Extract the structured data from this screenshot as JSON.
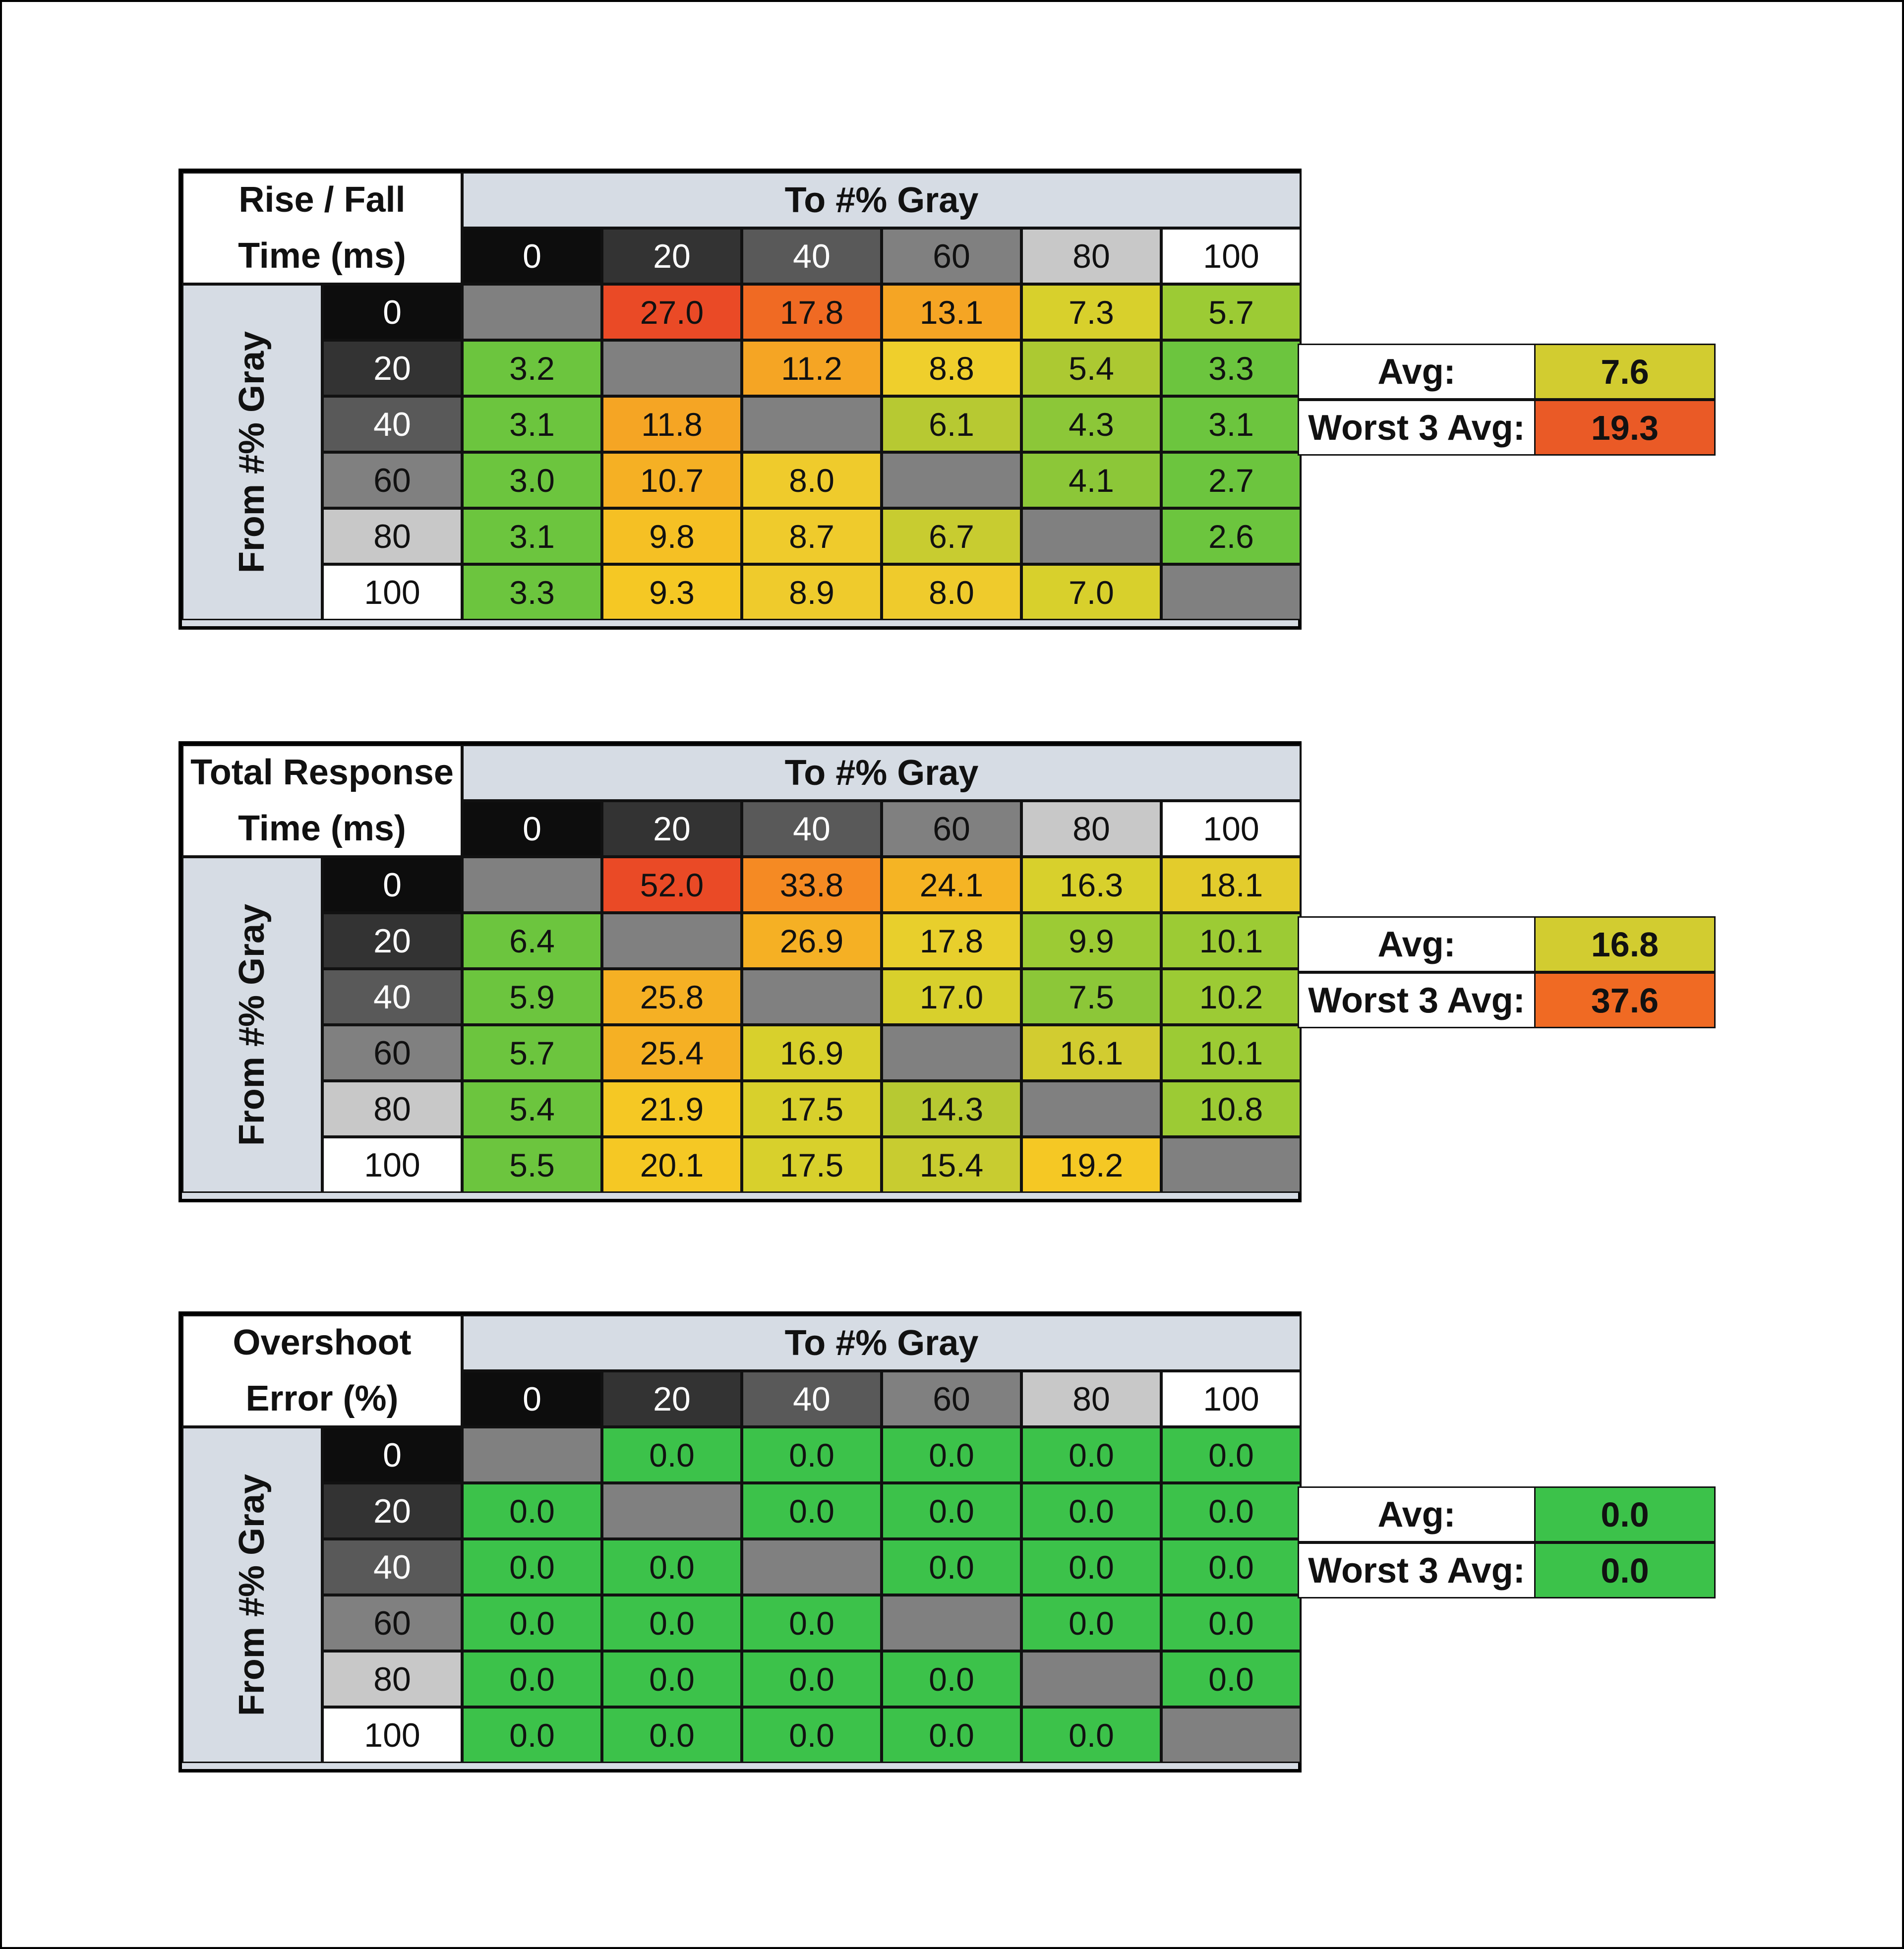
{
  "chart_data": [
    {
      "type": "table",
      "title_lines": [
        "Rise / Fall",
        "Time (ms)"
      ],
      "col_header": "To #% Gray",
      "row_header": "From #% Gray",
      "columns": [
        "0",
        "20",
        "40",
        "60",
        "80",
        "100"
      ],
      "rows": [
        "0",
        "20",
        "40",
        "60",
        "80",
        "100"
      ],
      "values": [
        [
          "",
          "27.0",
          "17.8",
          "13.1",
          "7.3",
          "5.7"
        ],
        [
          "3.2",
          "",
          "11.2",
          "8.8",
          "5.4",
          "3.3"
        ],
        [
          "3.1",
          "11.8",
          "",
          "6.1",
          "4.3",
          "3.1"
        ],
        [
          "3.0",
          "10.7",
          "8.0",
          "",
          "4.1",
          "2.7"
        ],
        [
          "3.1",
          "9.8",
          "8.7",
          "6.7",
          "",
          "2.6"
        ],
        [
          "3.3",
          "9.3",
          "8.9",
          "8.0",
          "7.0",
          ""
        ]
      ],
      "cell_colors": [
        [
          "#808080",
          "#ea4a26",
          "#f06a23",
          "#f5a524",
          "#d8d02c",
          "#9ccb34"
        ],
        [
          "#6cc53e",
          "#808080",
          "#f5a524",
          "#efcf2c",
          "#acc932",
          "#6cc53e"
        ],
        [
          "#6cc53e",
          "#f5a524",
          "#808080",
          "#b7c932",
          "#8cc738",
          "#6cc53e"
        ],
        [
          "#6cc53e",
          "#f5b024",
          "#efcb2c",
          "#808080",
          "#8cc738",
          "#6cc53e"
        ],
        [
          "#6cc53e",
          "#f5c024",
          "#efcb2c",
          "#c8cc30",
          "#808080",
          "#6cc53e"
        ],
        [
          "#6cc53e",
          "#f5c824",
          "#efcb2c",
          "#efcb2c",
          "#d8d02c",
          "#808080"
        ]
      ],
      "summary": [
        {
          "label": "Avg:",
          "value": "7.6",
          "color": "#d2cc30"
        },
        {
          "label": "Worst 3 Avg:",
          "value": "19.3",
          "color": "#ea5a26"
        }
      ]
    },
    {
      "type": "table",
      "title_lines": [
        "Total Response",
        "Time (ms)"
      ],
      "col_header": "To #% Gray",
      "row_header": "From #% Gray",
      "columns": [
        "0",
        "20",
        "40",
        "60",
        "80",
        "100"
      ],
      "rows": [
        "0",
        "20",
        "40",
        "60",
        "80",
        "100"
      ],
      "values": [
        [
          "",
          "52.0",
          "33.8",
          "24.1",
          "16.3",
          "18.1"
        ],
        [
          "6.4",
          "",
          "26.9",
          "17.8",
          "9.9",
          "10.1"
        ],
        [
          "5.9",
          "25.8",
          "",
          "17.0",
          "7.5",
          "10.2"
        ],
        [
          "5.7",
          "25.4",
          "16.9",
          "",
          "16.1",
          "10.1"
        ],
        [
          "5.4",
          "21.9",
          "17.5",
          "14.3",
          "",
          "10.8"
        ],
        [
          "5.5",
          "20.1",
          "17.5",
          "15.4",
          "19.2",
          ""
        ]
      ],
      "cell_colors": [
        [
          "#808080",
          "#ea4a26",
          "#f58a23",
          "#f5b424",
          "#d8d02c",
          "#e3cc2c"
        ],
        [
          "#6cc53e",
          "#808080",
          "#f5b024",
          "#e8cf2c",
          "#9ccb34",
          "#9ccb34"
        ],
        [
          "#6cc53e",
          "#f5b024",
          "#808080",
          "#d8d02c",
          "#8cc738",
          "#9ccb34"
        ],
        [
          "#6cc53e",
          "#f5b024",
          "#d8d02c",
          "#808080",
          "#d2cc30",
          "#9ccb34"
        ],
        [
          "#6cc53e",
          "#f5c824",
          "#d8d02c",
          "#b7c932",
          "#808080",
          "#9ccb34"
        ],
        [
          "#6cc53e",
          "#f5c824",
          "#d8d02c",
          "#c8cc30",
          "#f5c824",
          "#808080"
        ]
      ],
      "summary": [
        {
          "label": "Avg:",
          "value": "16.8",
          "color": "#d2cc30"
        },
        {
          "label": "Worst 3 Avg:",
          "value": "37.6",
          "color": "#f06a23"
        }
      ]
    },
    {
      "type": "table",
      "title_lines": [
        "Overshoot",
        "Error (%)"
      ],
      "col_header": "To #% Gray",
      "row_header": "From #% Gray",
      "columns": [
        "0",
        "20",
        "40",
        "60",
        "80",
        "100"
      ],
      "rows": [
        "0",
        "20",
        "40",
        "60",
        "80",
        "100"
      ],
      "values": [
        [
          "",
          "0.0",
          "0.0",
          "0.0",
          "0.0",
          "0.0"
        ],
        [
          "0.0",
          "",
          "0.0",
          "0.0",
          "0.0",
          "0.0"
        ],
        [
          "0.0",
          "0.0",
          "",
          "0.0",
          "0.0",
          "0.0"
        ],
        [
          "0.0",
          "0.0",
          "0.0",
          "",
          "0.0",
          "0.0"
        ],
        [
          "0.0",
          "0.0",
          "0.0",
          "0.0",
          "",
          "0.0"
        ],
        [
          "0.0",
          "0.0",
          "0.0",
          "0.0",
          "0.0",
          ""
        ]
      ],
      "cell_colors": [
        [
          "#808080",
          "#3cc24a",
          "#3cc24a",
          "#3cc24a",
          "#3cc24a",
          "#3cc24a"
        ],
        [
          "#3cc24a",
          "#808080",
          "#3cc24a",
          "#3cc24a",
          "#3cc24a",
          "#3cc24a"
        ],
        [
          "#3cc24a",
          "#3cc24a",
          "#808080",
          "#3cc24a",
          "#3cc24a",
          "#3cc24a"
        ],
        [
          "#3cc24a",
          "#3cc24a",
          "#3cc24a",
          "#808080",
          "#3cc24a",
          "#3cc24a"
        ],
        [
          "#3cc24a",
          "#3cc24a",
          "#3cc24a",
          "#3cc24a",
          "#808080",
          "#3cc24a"
        ],
        [
          "#3cc24a",
          "#3cc24a",
          "#3cc24a",
          "#3cc24a",
          "#3cc24a",
          "#808080"
        ]
      ],
      "summary": [
        {
          "label": "Avg:",
          "value": "0.0",
          "color": "#3cc24a"
        },
        {
          "label": "Worst 3 Avg:",
          "value": "0.0",
          "color": "#3cc24a"
        }
      ]
    }
  ],
  "header_colors": {
    "backgrounds": [
      "#0d0d0d",
      "#333333",
      "#595959",
      "#808080",
      "#c8c8c8",
      "#ffffff"
    ],
    "text": [
      "#ffffff",
      "#ffffff",
      "#ffffff",
      "#111111",
      "#111111",
      "#111111"
    ]
  }
}
